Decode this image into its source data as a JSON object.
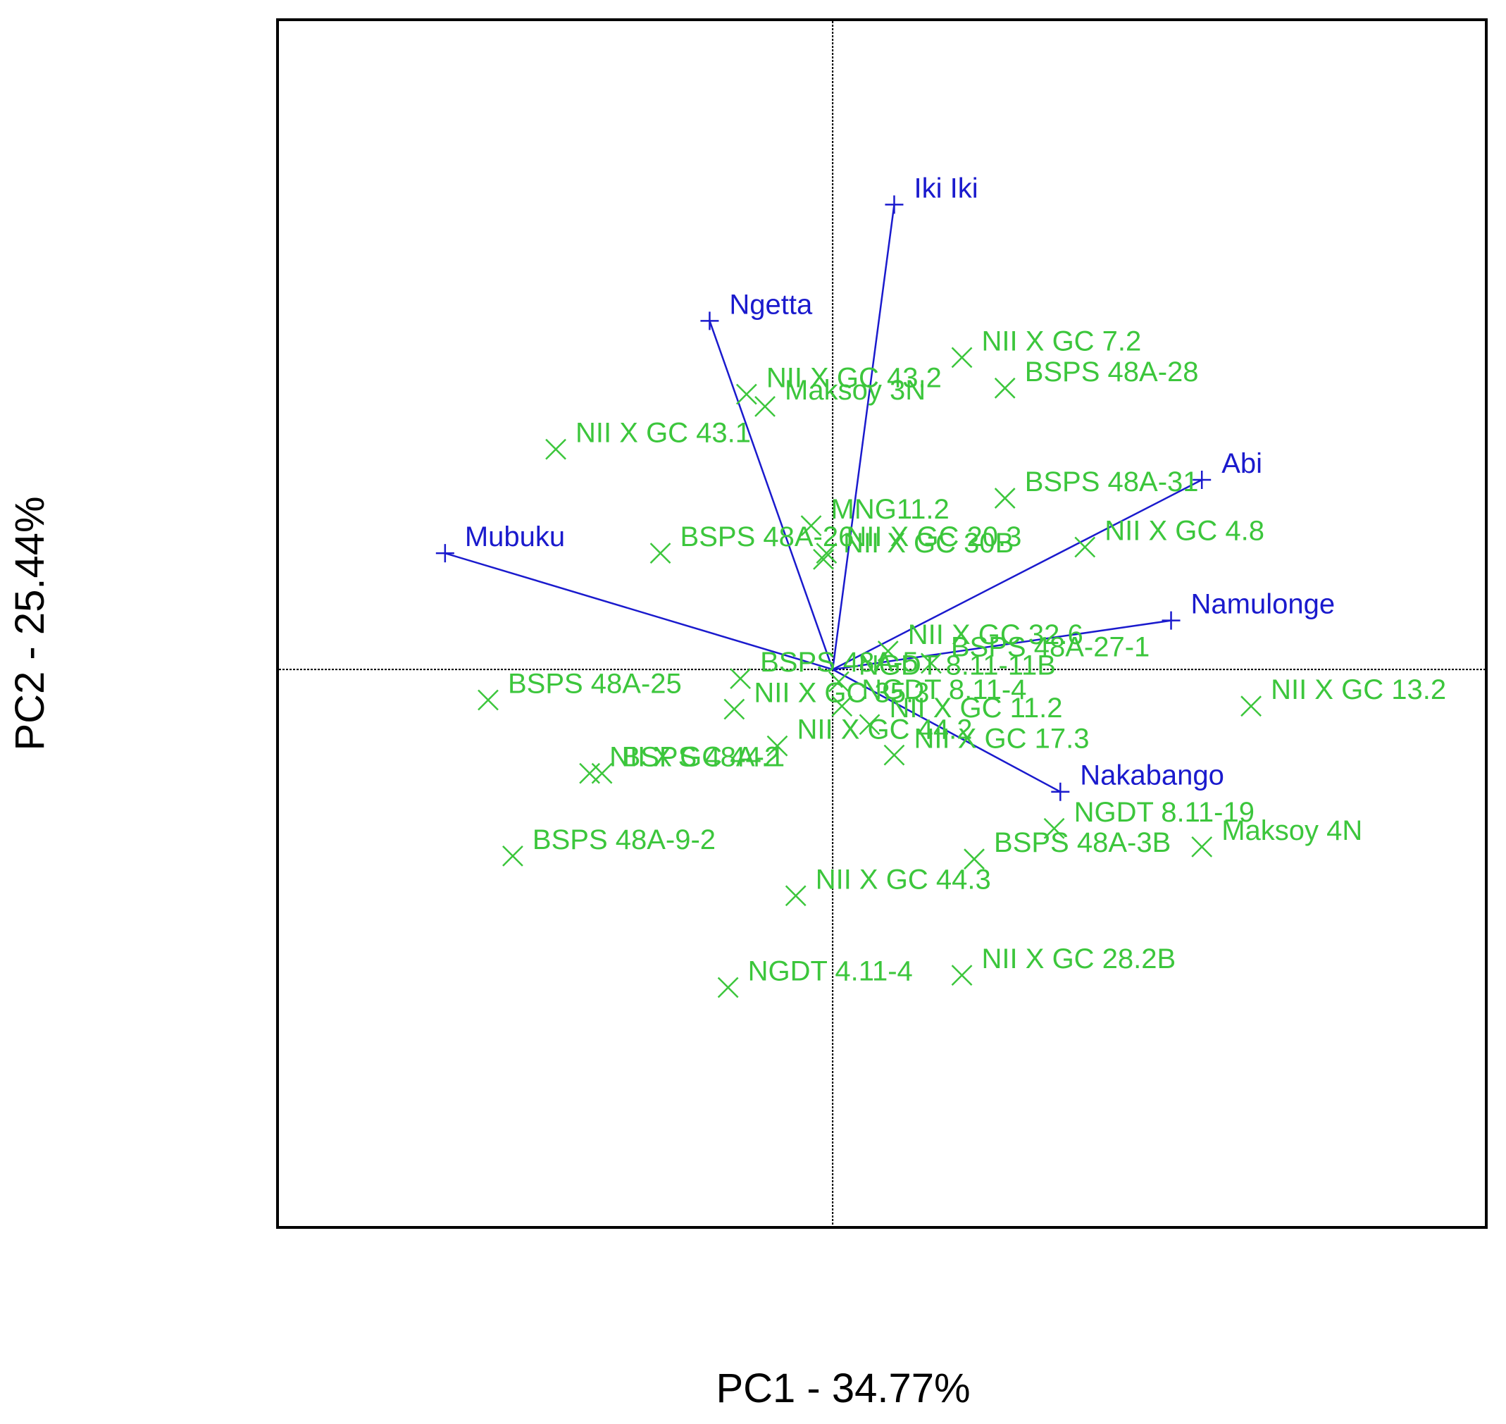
{
  "chart_data": {
    "type": "scatter",
    "subtype": "biplot",
    "title": "",
    "xlabel": "PC1 - 34.77%",
    "ylabel": "PC2 - 25.44%",
    "xlim": [
      -9.0,
      10.6
    ],
    "ylim": [
      -9.1,
      10.6
    ],
    "origin_lines": true,
    "colors": {
      "vectors": "#1a1acd",
      "genotypes": "#3cc63c",
      "frame": "#000000"
    },
    "environments": [
      {
        "name": "Iki Iki",
        "x": 1.0,
        "y": 7.6
      },
      {
        "name": "Ngetta",
        "x": -2.0,
        "y": 5.7
      },
      {
        "name": "Abi",
        "x": 6.0,
        "y": 3.1
      },
      {
        "name": "Mubuku",
        "x": -6.3,
        "y": 1.9
      },
      {
        "name": "Namulonge",
        "x": 5.5,
        "y": 0.8
      },
      {
        "name": "Nakabango",
        "x": 3.7,
        "y": -2.0
      }
    ],
    "genotypes": [
      {
        "name": "NII X GC 7.2",
        "x": 2.1,
        "y": 5.1
      },
      {
        "name": "BSPS 48A-28",
        "x": 2.8,
        "y": 4.6
      },
      {
        "name": "NII X GC 43.2",
        "x": -1.4,
        "y": 4.5
      },
      {
        "name": "Maksoy 3N",
        "x": -1.1,
        "y": 4.3
      },
      {
        "name": "NII X GC 43.1",
        "x": -4.5,
        "y": 3.6
      },
      {
        "name": "BSPS 48A-31",
        "x": 2.8,
        "y": 2.8
      },
      {
        "name": "MNG11.2",
        "x": -0.35,
        "y": 2.35
      },
      {
        "name": "NII X GC 4.8",
        "x": 4.1,
        "y": 2.0
      },
      {
        "name": "BSPS 48A-26",
        "x": -2.8,
        "y": 1.9
      },
      {
        "name": "NII X GC 20.3",
        "x": -0.1,
        "y": 1.9
      },
      {
        "name": "NII X GC 30B",
        "x": -0.15,
        "y": 1.8
      },
      {
        "name": "NII X GC 32.6",
        "x": 0.9,
        "y": 0.3
      },
      {
        "name": "BSPS 48A-27-1",
        "x": 1.6,
        "y": 0.1
      },
      {
        "name": "BSPS 48A-5",
        "x": -1.5,
        "y": -0.15
      },
      {
        "name": "NGDT 8.11-11B",
        "x": 0.1,
        "y": -0.2
      },
      {
        "name": "BSPS 48A-25",
        "x": -5.6,
        "y": -0.5
      },
      {
        "name": "NII X GC 35.3",
        "x": -1.6,
        "y": -0.65
      },
      {
        "name": "NGDT 8.11-4",
        "x": 0.15,
        "y": -0.6
      },
      {
        "name": "NII X GC 11.2",
        "x": 0.6,
        "y": -0.9
      },
      {
        "name": "NII X GC 17.3",
        "x": 1.0,
        "y": -1.4
      },
      {
        "name": "NII X GC 13.2",
        "x": 6.8,
        "y": -0.6
      },
      {
        "name": "NII X GC 44.2",
        "x": -0.9,
        "y": -1.25
      },
      {
        "name": "NII X GC 44.1",
        "x": -3.95,
        "y": -1.7
      },
      {
        "name": "BSPS 48A-2",
        "x": -3.75,
        "y": -1.7
      },
      {
        "name": "NGDT 8.11-19",
        "x": 3.6,
        "y": -2.6
      },
      {
        "name": "Maksoy 4N",
        "x": 6.0,
        "y": -2.9
      },
      {
        "name": "BSPS 48A-3B",
        "x": 2.3,
        "y": -3.1
      },
      {
        "name": "BSPS 48A-9-2",
        "x": -5.2,
        "y": -3.05
      },
      {
        "name": "NII X GC 44.3",
        "x": -0.6,
        "y": -3.7
      },
      {
        "name": "NII X GC 28.2B",
        "x": 2.1,
        "y": -5.0
      },
      {
        "name": "NGDT 4.11-4",
        "x": -1.7,
        "y": -5.2
      }
    ]
  }
}
